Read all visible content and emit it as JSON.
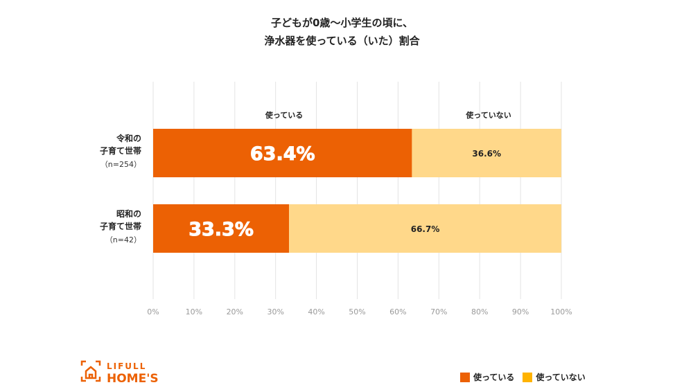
{
  "chart_data": {
    "type": "bar",
    "orientation": "horizontal",
    "stacked": true,
    "title_lines": [
      "子どもが0歳〜小学生の頃に、",
      "浄水器を使っている（いた）割合"
    ],
    "categories": [
      {
        "lines": [
          "令和の",
          "子育て世帯"
        ],
        "n": "（n=254）"
      },
      {
        "lines": [
          "昭和の",
          "子育て世帯"
        ],
        "n": "（n=42）"
      }
    ],
    "series": [
      {
        "name": "使っている",
        "values": [
          63.4,
          33.3
        ],
        "color": "#EC6104",
        "bar_color": "#EC6104"
      },
      {
        "name": "使っていない",
        "values": [
          36.6,
          66.7
        ],
        "color": "#FFB300",
        "bar_color": "#FFD88A"
      }
    ],
    "data_labels": [
      [
        "63.4%",
        "33.3%"
      ],
      [
        "36.6%",
        "66.7%"
      ]
    ],
    "top_labels": [
      "使っている",
      "使っていない"
    ],
    "x_ticks": [
      "0%",
      "10%",
      "20%",
      "30%",
      "40%",
      "50%",
      "60%",
      "70%",
      "80%",
      "90%",
      "100%"
    ],
    "xlim": [
      0,
      100
    ],
    "grid": true,
    "legend_position": "bottom-right"
  },
  "brand": {
    "line1": "LIFULL",
    "line2": "HOME'S",
    "color": "#EC6104"
  }
}
